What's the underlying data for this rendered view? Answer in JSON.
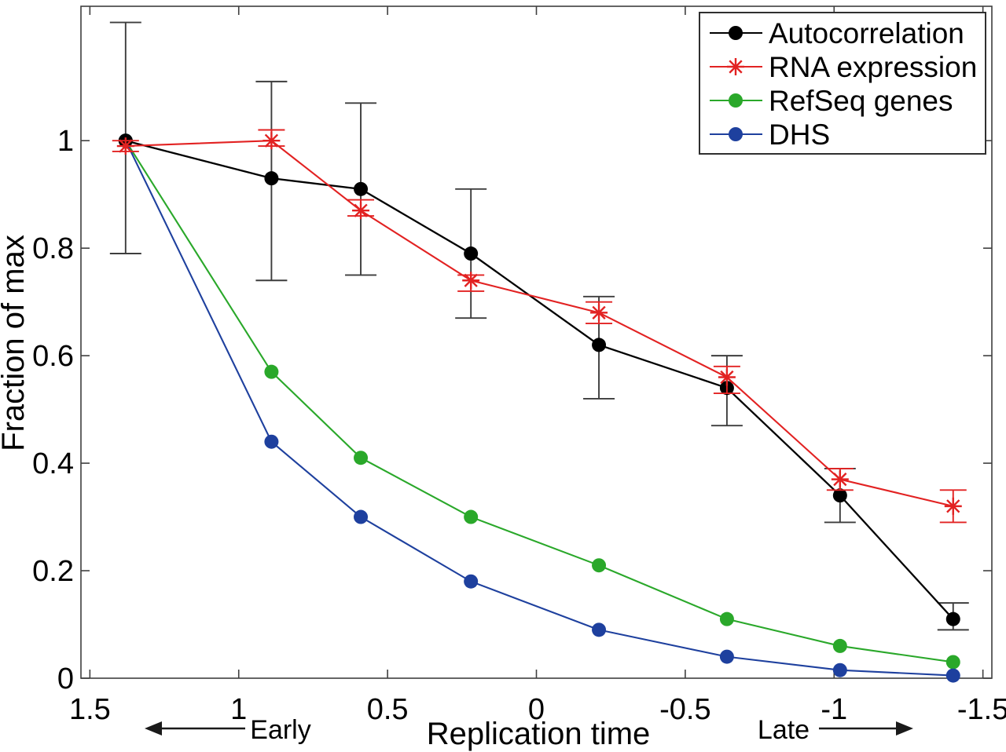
{
  "figure": {
    "background": "#ffffff"
  },
  "annotations": {
    "early": "Early",
    "late": "Late"
  },
  "chart_data": {
    "type": "line",
    "title": "",
    "xlabel": "Replication time",
    "ylabel": "Fraction of max",
    "x_axis_reversed": true,
    "xlim": [
      1.53,
      -1.53
    ],
    "ylim": [
      0,
      1.25
    ],
    "grid": false,
    "x_ticks": [
      1.5,
      1,
      0.5,
      0,
      -0.5,
      -1,
      -1.5
    ],
    "x_tick_labels": [
      "1.5",
      "1",
      "0.5",
      "0",
      "-0.5",
      "-1",
      "-1.5"
    ],
    "y_ticks": [
      0,
      0.2,
      0.4,
      0.6,
      0.8,
      1
    ],
    "y_tick_labels": [
      "0",
      "0.2",
      "0.4",
      "0.6",
      "0.8",
      "1"
    ],
    "x": [
      1.38,
      0.89,
      0.59,
      0.22,
      -0.21,
      -0.64,
      -1.02,
      -1.4
    ],
    "series": [
      {
        "name": "Autocorrelation",
        "color": "#000000",
        "errbar_color": "#3d3d3d",
        "marker": "circle",
        "values": [
          1.0,
          0.93,
          0.91,
          0.79,
          0.62,
          0.54,
          0.34,
          0.11
        ],
        "err_low": [
          0.79,
          0.74,
          0.75,
          0.67,
          0.52,
          0.47,
          0.29,
          0.09
        ],
        "err_high": [
          1.22,
          1.11,
          1.07,
          0.91,
          0.71,
          0.6,
          0.39,
          0.14
        ]
      },
      {
        "name": "RNA expression",
        "color": "#e22222",
        "errbar_color": "#e22222",
        "marker": "asterisk",
        "values": [
          0.99,
          1.0,
          0.87,
          0.74,
          0.68,
          0.56,
          0.37,
          0.32
        ],
        "err_low": [
          0.98,
          0.99,
          0.86,
          0.72,
          0.66,
          0.53,
          0.35,
          0.29
        ],
        "err_high": [
          1.0,
          1.02,
          0.89,
          0.75,
          0.7,
          0.58,
          0.39,
          0.35
        ]
      },
      {
        "name": "RefSeq genes",
        "color": "#2aa82a",
        "marker": "circle",
        "values": [
          1.0,
          0.57,
          0.41,
          0.3,
          0.21,
          0.11,
          0.06,
          0.03
        ]
      },
      {
        "name": "DHS",
        "color": "#1e409e",
        "marker": "circle",
        "values": [
          1.0,
          0.44,
          0.3,
          0.18,
          0.09,
          0.04,
          0.015,
          0.005
        ]
      }
    ],
    "legend": {
      "position": "top-right",
      "entries": [
        "Autocorrelation",
        "RNA expression",
        "RefSeq genes",
        "DHS"
      ]
    }
  }
}
